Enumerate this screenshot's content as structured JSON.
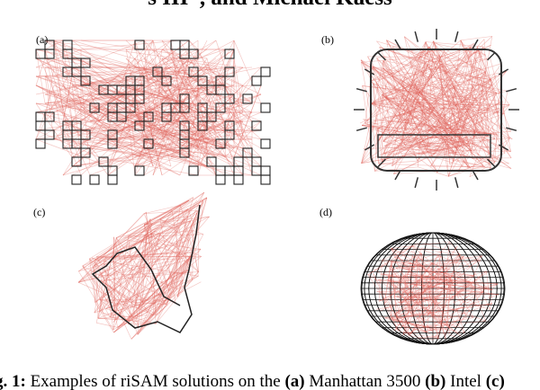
{
  "header": {
    "authors": "s III*, and Michael Kaess"
  },
  "figure": {
    "panels": [
      {
        "label": "(a)"
      },
      {
        "label": "(b)"
      },
      {
        "label": "(c)"
      },
      {
        "label": "(d)"
      }
    ],
    "caption": {
      "label": "g. 1:",
      "text": "Examples of riSAM solutions on the",
      "items": [
        {
          "marker": "(a)",
          "name": "Manhattan 3500"
        },
        {
          "marker": "(b)",
          "name": "Intel"
        },
        {
          "marker": "(c)",
          "name": ""
        }
      ]
    }
  }
}
